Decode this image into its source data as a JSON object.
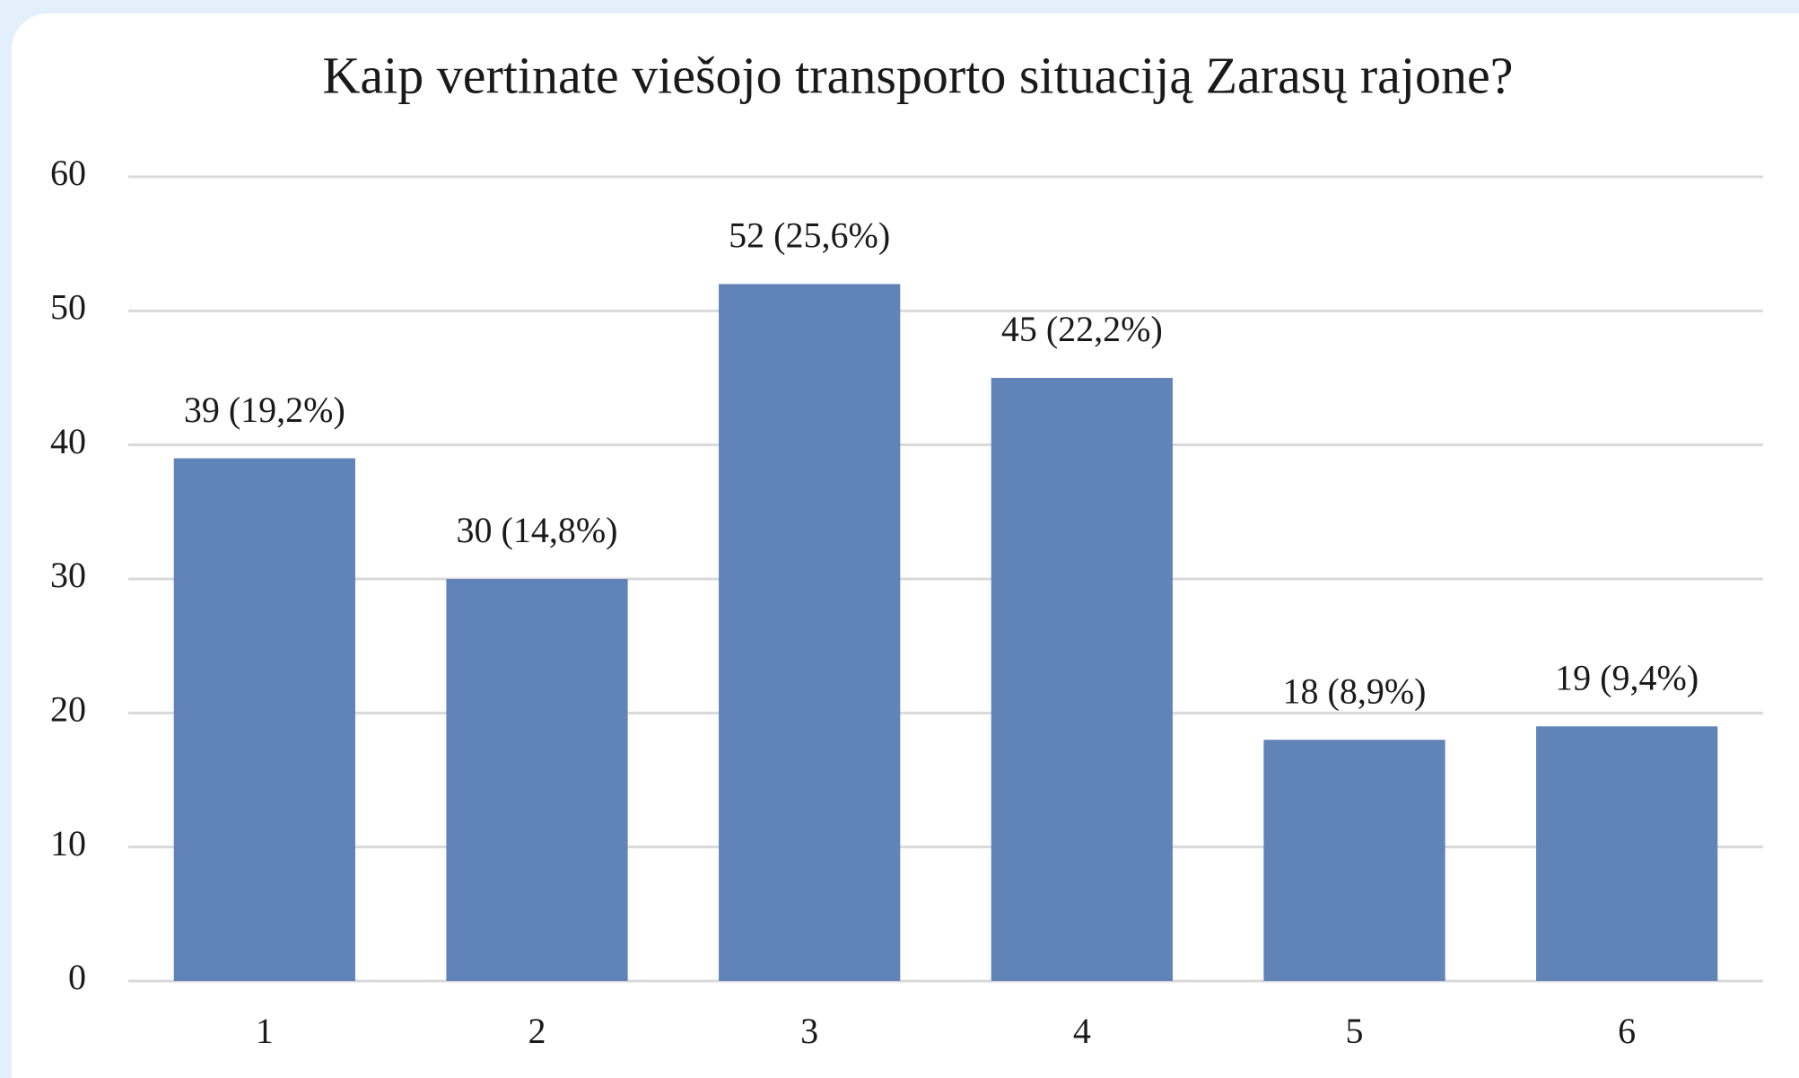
{
  "chart_data": {
    "type": "bar",
    "title": "Kaip vertinate viešojo transporto situaciją Zarasų rajone?",
    "categories": [
      "1",
      "2",
      "3",
      "4",
      "5",
      "6"
    ],
    "values": [
      39,
      30,
      52,
      45,
      18,
      19
    ],
    "value_labels": [
      "39 (19,2%)",
      "30 (14,8%)",
      "52 (25,6%)",
      "45 (22,2%)",
      "18 (8,9%)",
      "19 (9,4%)"
    ],
    "color": "#6083b8",
    "ylim": [
      0,
      60
    ],
    "yticks": [
      0,
      10,
      20,
      30,
      40,
      50,
      60
    ],
    "grid": true
  }
}
